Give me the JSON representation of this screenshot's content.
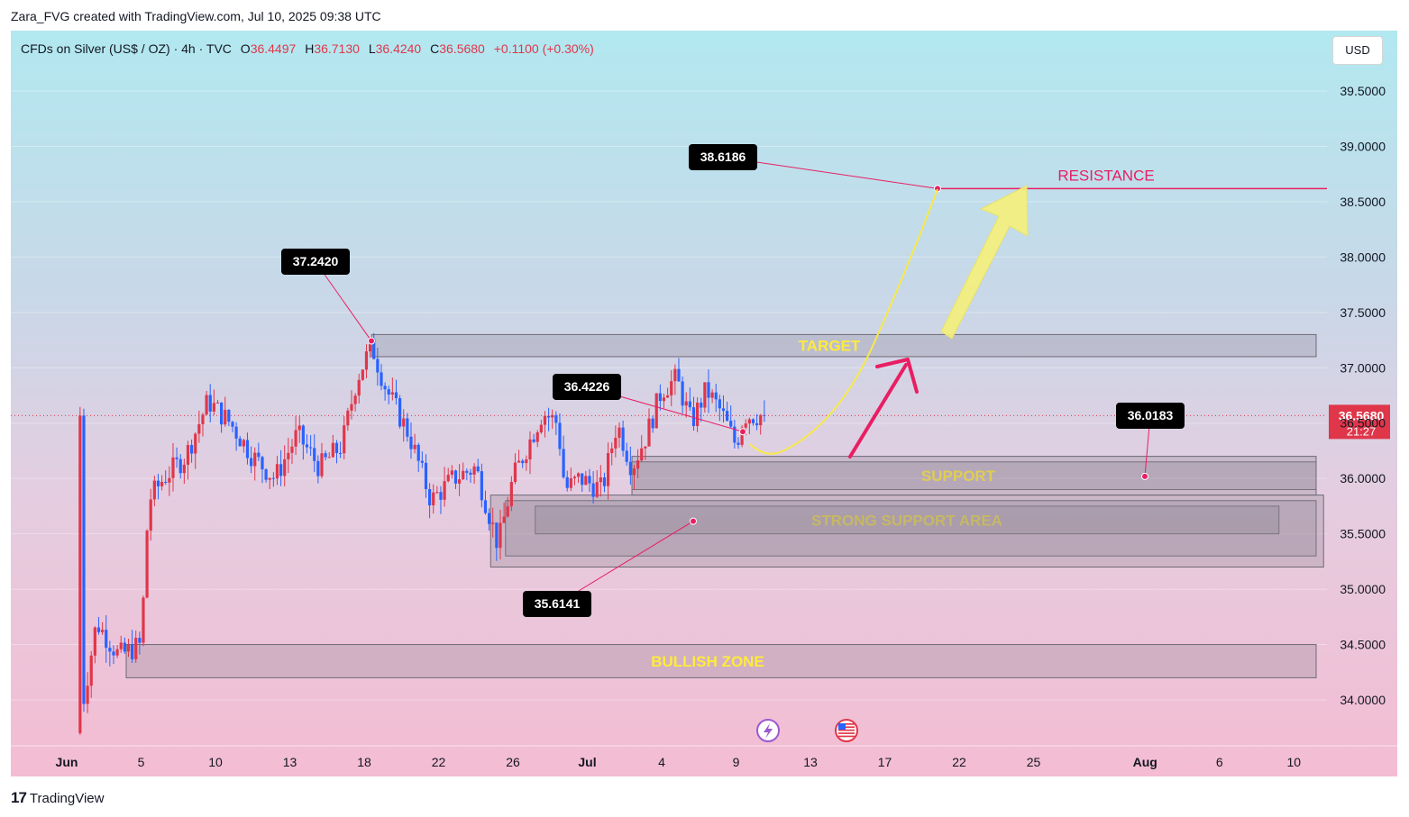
{
  "header": {
    "credit": "Zara_FVG created with TradingView.com, Jul 10, 2025 09:38 UTC"
  },
  "legend": {
    "symbol": "CFDs on Silver (US$ / OZ) · 4h · TVC",
    "open_label": "O",
    "open": "36.4497",
    "high_label": "H",
    "high": "36.7130",
    "low_label": "L",
    "low": "36.4240",
    "close_label": "C",
    "close": "36.5680",
    "change": "+0.1100 (+0.30%)"
  },
  "currency_button": "USD",
  "footer": {
    "brand": "TradingView",
    "logo_glyph": "17"
  },
  "colors": {
    "up": "#e0364a",
    "down": "#2962ff",
    "resistance": "#e91e63",
    "zone_label": "#ffeb3b",
    "arrow_pink": "#e91e63",
    "arrow_yellow": "#f5ef7a"
  },
  "chart_data": {
    "type": "candlestick",
    "title": "CFDs on Silver (US$ / OZ) · 4h · TVC",
    "ylim": [
      33.6,
      39.9
    ],
    "y_ticks": [
      "39.5000",
      "39.0000",
      "38.5000",
      "38.0000",
      "37.5000",
      "37.0000",
      "36.5000",
      "36.0000",
      "35.5000",
      "35.0000",
      "34.5000",
      "34.0000"
    ],
    "x_ticks": [
      {
        "label": "Jun",
        "t": 0
      },
      {
        "label": "5",
        "t": 10
      },
      {
        "label": "10",
        "t": 20
      },
      {
        "label": "13",
        "t": 30
      },
      {
        "label": "18",
        "t": 40
      },
      {
        "label": "22",
        "t": 50
      },
      {
        "label": "26",
        "t": 60
      },
      {
        "label": "Jul",
        "t": 70
      },
      {
        "label": "4",
        "t": 80
      },
      {
        "label": "9",
        "t": 90
      },
      {
        "label": "13",
        "t": 100
      },
      {
        "label": "17",
        "t": 110
      },
      {
        "label": "22",
        "t": 120
      },
      {
        "label": "25",
        "t": 130
      },
      {
        "label": "Aug",
        "t": 145
      },
      {
        "label": "6",
        "t": 155
      },
      {
        "label": "10",
        "t": 165
      }
    ],
    "last_price": {
      "value": 36.568,
      "label": "36.5680",
      "countdown": "21:27"
    },
    "candle_key_prices": [
      {
        "t": 2,
        "price": 33.9
      },
      {
        "t": 4,
        "price": 34.7
      },
      {
        "t": 7,
        "price": 34.4
      },
      {
        "t": 10,
        "price": 34.5
      },
      {
        "t": 11,
        "price": 35.8
      },
      {
        "t": 13,
        "price": 36.0
      },
      {
        "t": 16,
        "price": 36.2
      },
      {
        "t": 19,
        "price": 36.7
      },
      {
        "t": 22,
        "price": 36.5
      },
      {
        "t": 25,
        "price": 36.2
      },
      {
        "t": 28,
        "price": 36.0
      },
      {
        "t": 31,
        "price": 36.4
      },
      {
        "t": 34,
        "price": 36.1
      },
      {
        "t": 37,
        "price": 36.3
      },
      {
        "t": 39,
        "price": 36.9
      },
      {
        "t": 41,
        "price": 37.2
      },
      {
        "t": 43,
        "price": 36.8
      },
      {
        "t": 46,
        "price": 36.4
      },
      {
        "t": 49,
        "price": 35.8
      },
      {
        "t": 52,
        "price": 36.0
      },
      {
        "t": 55,
        "price": 36.1
      },
      {
        "t": 58,
        "price": 35.4
      },
      {
        "t": 60,
        "price": 36.0
      },
      {
        "t": 62,
        "price": 36.3
      },
      {
        "t": 64,
        "price": 36.6
      },
      {
        "t": 66,
        "price": 36.5
      },
      {
        "t": 67,
        "price": 35.9
      },
      {
        "t": 69,
        "price": 36.0
      },
      {
        "t": 72,
        "price": 35.9
      },
      {
        "t": 74,
        "price": 36.5
      },
      {
        "t": 76,
        "price": 36.1
      },
      {
        "t": 78,
        "price": 36.4
      },
      {
        "t": 80,
        "price": 36.8
      },
      {
        "t": 82,
        "price": 36.9
      },
      {
        "t": 84,
        "price": 36.5
      },
      {
        "t": 86,
        "price": 36.8
      },
      {
        "t": 88,
        "price": 36.6
      },
      {
        "t": 90,
        "price": 36.3
      },
      {
        "t": 91,
        "price": 36.57
      }
    ],
    "zones": [
      {
        "label": "TARGET",
        "top": 37.3,
        "bottom": 37.1,
        "t_start": 41,
        "t_end": 168
      },
      {
        "label": "SUPPORT",
        "top": 36.15,
        "bottom": 35.9,
        "t_start": 76,
        "t_end": 168
      },
      {
        "label": "",
        "top": 36.2,
        "bottom": 35.85,
        "t_start": 76,
        "t_end": 168
      },
      {
        "label": "STRONG SUPPORT AREA",
        "top": 35.75,
        "bottom": 35.5,
        "t_start": 63,
        "t_end": 163
      },
      {
        "label": "",
        "top": 35.8,
        "bottom": 35.3,
        "t_start": 59,
        "t_end": 168
      },
      {
        "label": "",
        "top": 35.85,
        "bottom": 35.2,
        "t_start": 57,
        "t_end": 169
      },
      {
        "label": "BULLISH ZONE",
        "top": 34.5,
        "bottom": 34.2,
        "t_start": 8,
        "t_end": 168
      }
    ],
    "resistance": {
      "label": "RESISTANCE",
      "price": 38.6186
    },
    "callouts": [
      {
        "label": "38.6186",
        "price": 38.6186
      },
      {
        "label": "37.2420",
        "price": 37.242
      },
      {
        "label": "36.4226",
        "price": 36.4226
      },
      {
        "label": "36.0183",
        "price": 36.0183
      },
      {
        "label": "35.6141",
        "price": 35.6141
      }
    ],
    "event_icons": [
      "lightning-event-icon",
      "us-flag-event-icon"
    ]
  }
}
